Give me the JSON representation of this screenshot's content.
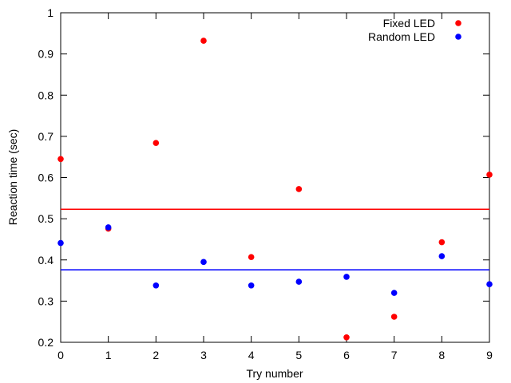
{
  "chart_data": {
    "type": "scatter",
    "xlabel": "Try number",
    "ylabel": "Reaction time (sec)",
    "xlim": [
      0,
      9
    ],
    "ylim": [
      0.2,
      1
    ],
    "xticks": [
      "0",
      "1",
      "2",
      "3",
      "4",
      "5",
      "6",
      "7",
      "8",
      "9"
    ],
    "yticks": [
      "0.2",
      "0.3",
      "0.4",
      "0.5",
      "0.6",
      "0.7",
      "0.8",
      "0.9",
      "1"
    ],
    "grid": false,
    "legend_position": "top-right",
    "series": [
      {
        "name": "Fixed LED",
        "color": "#ff0000",
        "x": [
          0,
          1,
          2,
          3,
          4,
          5,
          6,
          7,
          8,
          9
        ],
        "y": [
          0.645,
          0.476,
          0.684,
          0.932,
          0.407,
          0.572,
          0.212,
          0.262,
          0.443,
          0.607
        ],
        "mean": 0.523
      },
      {
        "name": "Random LED",
        "color": "#0000ff",
        "x": [
          0,
          1,
          2,
          3,
          4,
          5,
          6,
          7,
          8,
          9
        ],
        "y": [
          0.441,
          0.479,
          0.338,
          0.395,
          0.338,
          0.347,
          0.359,
          0.32,
          0.409,
          0.341
        ],
        "mean": 0.376
      }
    ]
  }
}
